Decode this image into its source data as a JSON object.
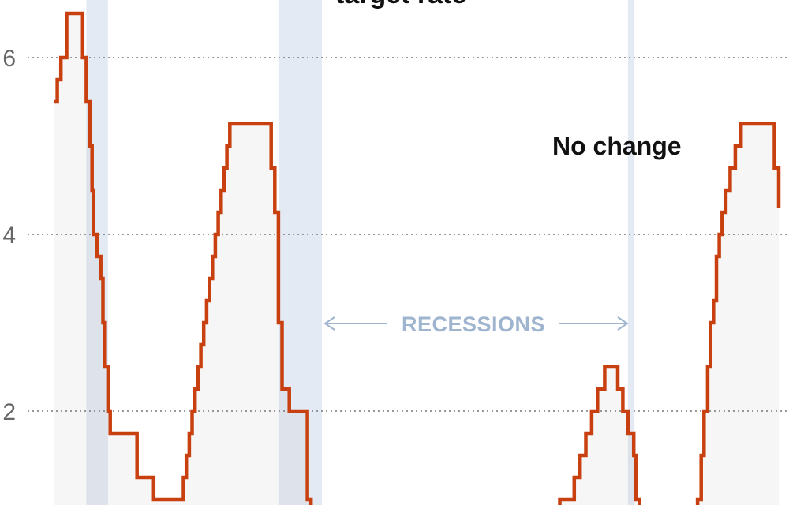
{
  "chart_data": {
    "type": "line",
    "step": true,
    "title": "",
    "xlabel": "",
    "ylabel": "",
    "ylim": [
      1.0,
      6.5
    ],
    "yticks": [
      2,
      4,
      6
    ],
    "grid": "horizontal-dotted",
    "x_range": [
      0,
      100
    ],
    "series": [
      {
        "color": "#c8400f",
        "fill": "#f4f4f4",
        "points": [
          [
            0,
            5.5
          ],
          [
            0.5,
            5.75
          ],
          [
            1,
            6.0
          ],
          [
            1.8,
            6.5
          ],
          [
            4,
            6.0
          ],
          [
            4.5,
            5.5
          ],
          [
            5.0,
            5.0
          ],
          [
            5.3,
            4.5
          ],
          [
            5.5,
            4.0
          ],
          [
            6.0,
            3.75
          ],
          [
            6.5,
            3.5
          ],
          [
            6.8,
            3.0
          ],
          [
            7.0,
            2.5
          ],
          [
            7.5,
            2.0
          ],
          [
            7.8,
            1.75
          ],
          [
            11.0,
            1.75
          ],
          [
            11.5,
            1.25
          ],
          [
            13.5,
            1.25
          ],
          [
            13.8,
            1.0
          ],
          [
            17.5,
            1.0
          ],
          [
            17.9,
            1.25
          ],
          [
            18.3,
            1.5
          ],
          [
            18.7,
            1.75
          ],
          [
            19.1,
            2.0
          ],
          [
            19.5,
            2.25
          ],
          [
            19.9,
            2.5
          ],
          [
            20.3,
            2.75
          ],
          [
            20.7,
            3.0
          ],
          [
            21.1,
            3.25
          ],
          [
            21.5,
            3.5
          ],
          [
            21.9,
            3.75
          ],
          [
            22.3,
            4.0
          ],
          [
            22.7,
            4.25
          ],
          [
            23.1,
            4.5
          ],
          [
            23.5,
            4.75
          ],
          [
            23.9,
            5.0
          ],
          [
            24.3,
            5.25
          ],
          [
            29.5,
            5.25
          ],
          [
            30.0,
            4.75
          ],
          [
            30.5,
            4.25
          ],
          [
            31.0,
            3.0
          ],
          [
            31.5,
            2.25
          ],
          [
            32.5,
            2.0
          ],
          [
            34.6,
            2.0
          ],
          [
            35.0,
            1.0
          ],
          [
            35.5,
            0.75
          ],
          [
            69.5,
            0.75
          ],
          [
            69.8,
            1.0
          ],
          [
            70.5,
            1.0
          ],
          [
            71.6,
            1.0
          ],
          [
            71.8,
            1.25
          ],
          [
            72.6,
            1.5
          ],
          [
            73.4,
            1.75
          ],
          [
            74.2,
            2.0
          ],
          [
            75.0,
            2.25
          ],
          [
            76.0,
            2.5
          ],
          [
            77.8,
            2.25
          ],
          [
            78.5,
            2.0
          ],
          [
            79.2,
            1.75
          ],
          [
            80.0,
            1.5
          ],
          [
            80.3,
            1.0
          ],
          [
            80.8,
            0.75
          ],
          [
            88.5,
            0.75
          ],
          [
            88.8,
            1.0
          ],
          [
            89.3,
            1.5
          ],
          [
            89.7,
            2.0
          ],
          [
            90.2,
            2.5
          ],
          [
            90.6,
            3.0
          ],
          [
            91.0,
            3.25
          ],
          [
            91.4,
            3.75
          ],
          [
            91.8,
            4.0
          ],
          [
            92.2,
            4.25
          ],
          [
            92.7,
            4.5
          ],
          [
            93.3,
            4.75
          ],
          [
            94.0,
            5.0
          ],
          [
            94.8,
            5.25
          ],
          [
            99.0,
            5.25
          ],
          [
            99.4,
            4.75
          ],
          [
            100.0,
            4.5
          ],
          [
            100.0,
            4.3
          ]
        ]
      }
    ],
    "recession_bands": [
      [
        4.5,
        7.5
      ],
      [
        31.0,
        37.0
      ],
      [
        79.2,
        80.1
      ]
    ],
    "annotations": {
      "title_fragment": "target rate",
      "note": "No change",
      "recessions": "RECESSIONS"
    }
  },
  "colors": {
    "line": "#c8400f",
    "area": "#f4f4f4",
    "recession": "#e4eaf3",
    "grid": "#777777",
    "recession_label": "#9fb4cf"
  }
}
